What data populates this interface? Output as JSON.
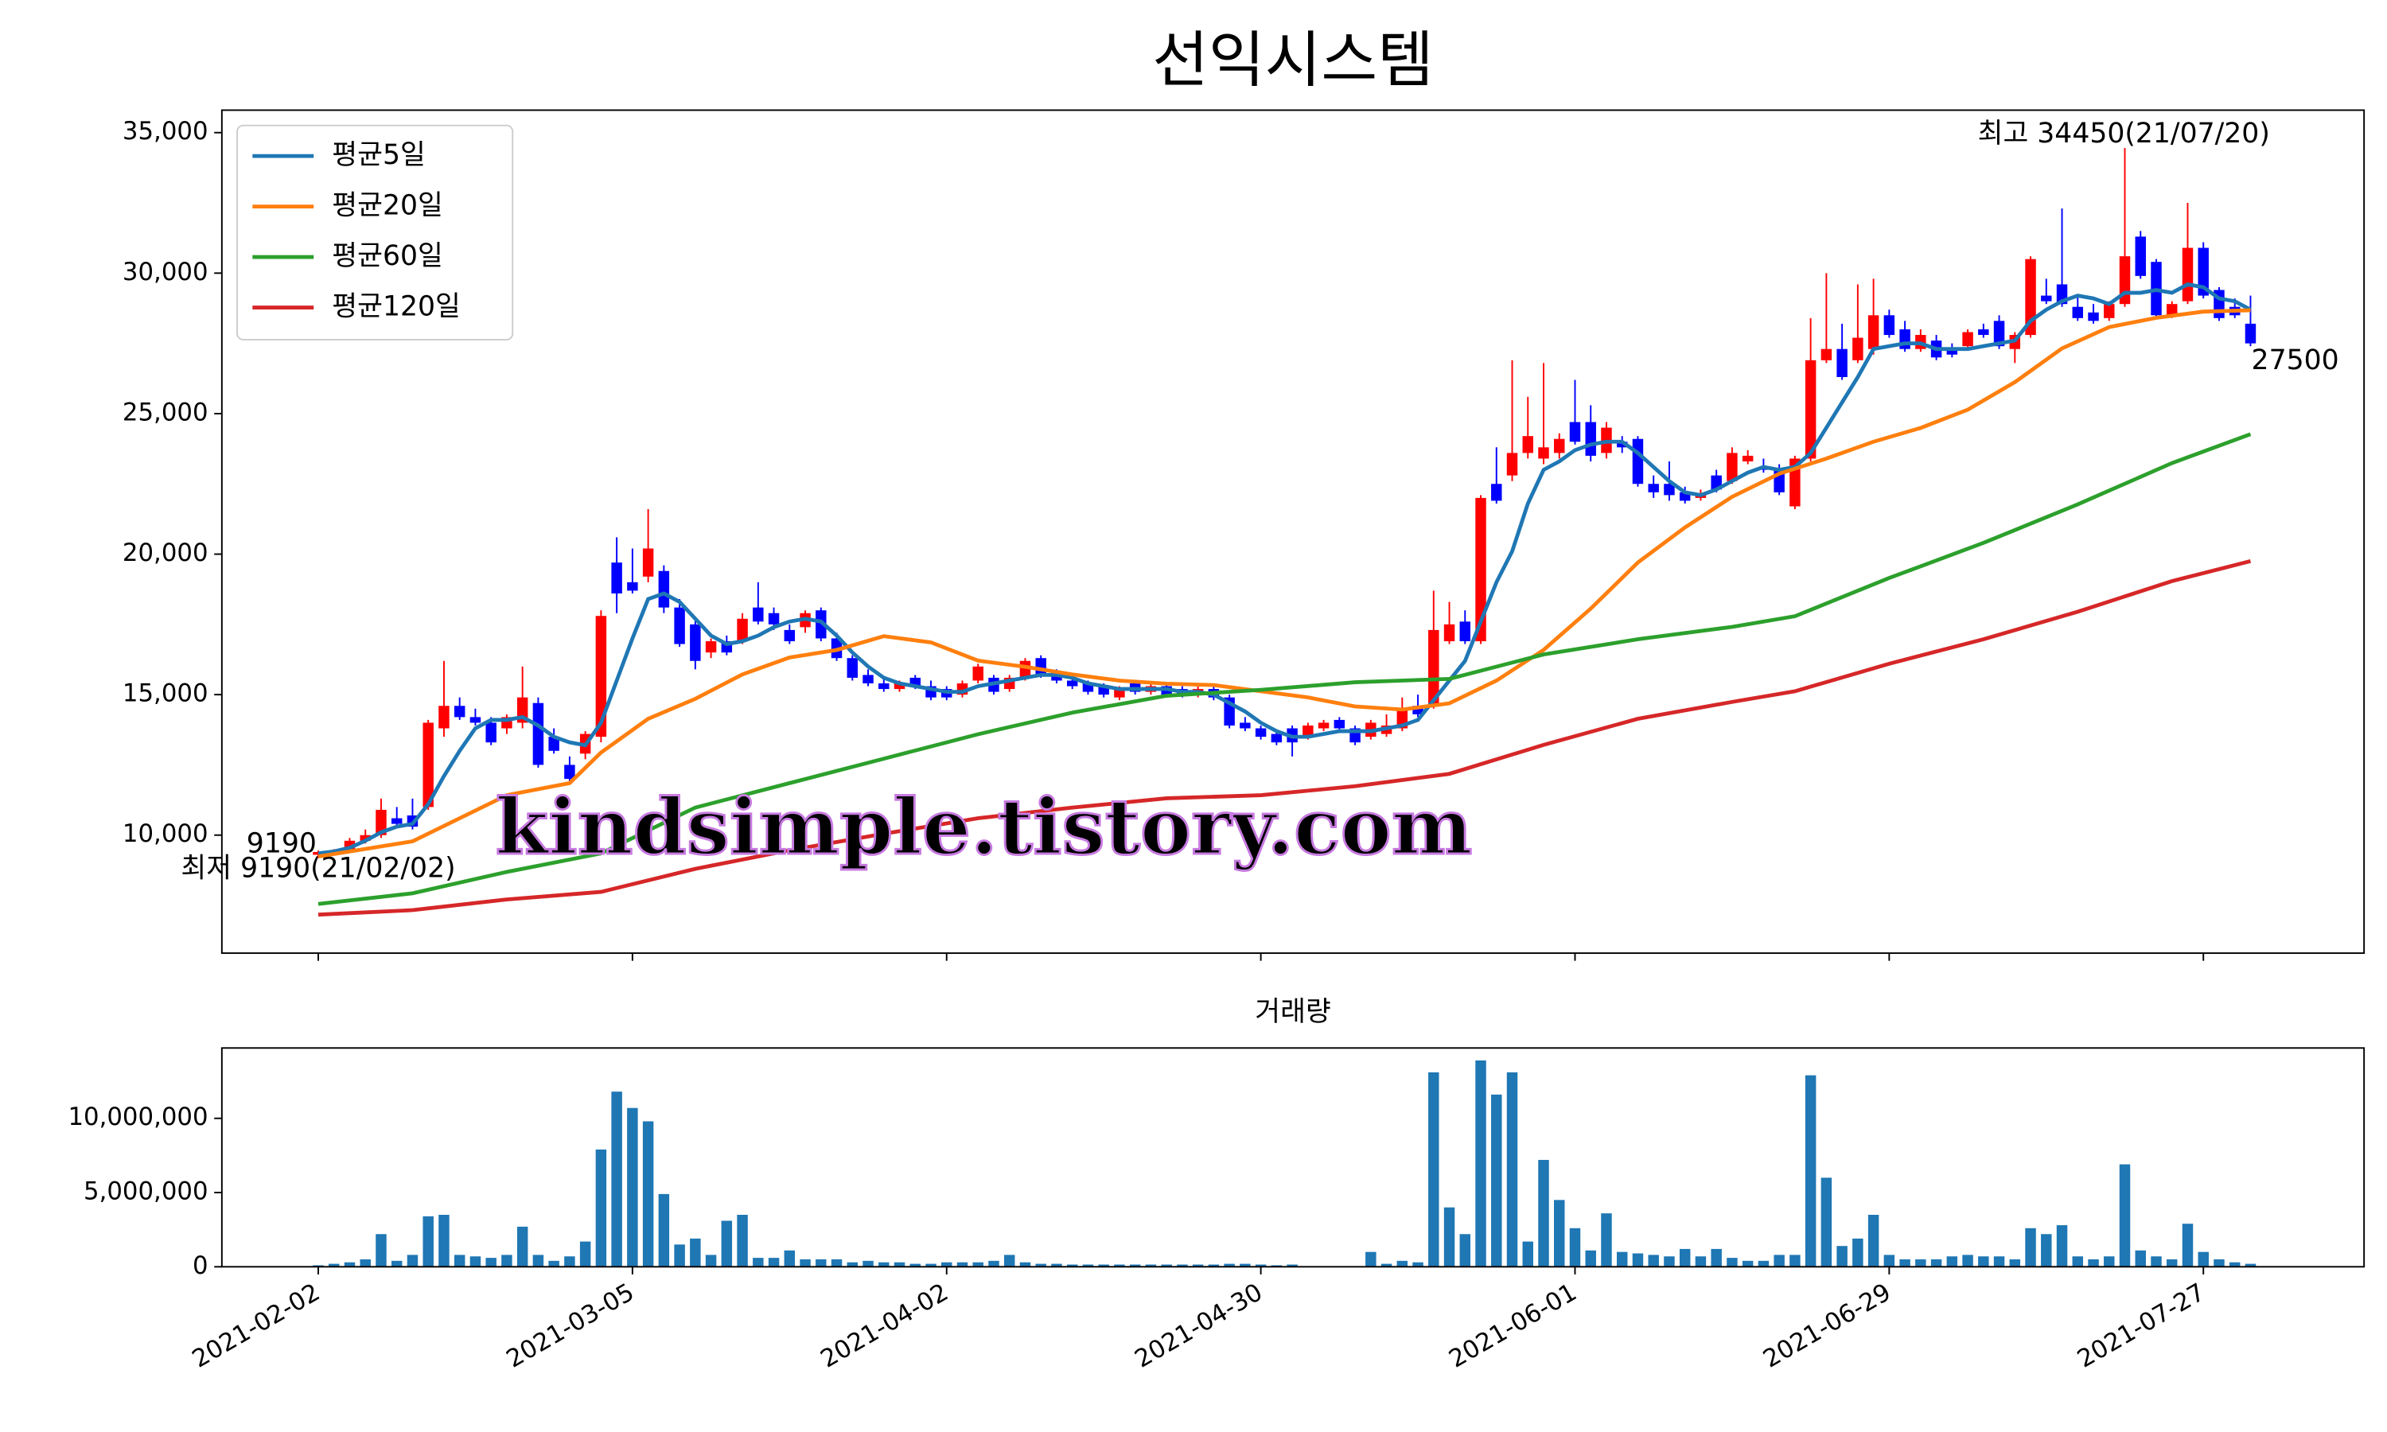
{
  "chart_data": {
    "type": "candlestick",
    "title": "선익시스템",
    "categories": [
      "2021-02-02",
      null,
      null,
      null,
      null,
      null,
      null,
      null,
      null,
      null,
      null,
      null,
      null,
      null,
      null,
      null,
      null,
      null,
      null,
      null,
      "2021-03-05",
      null,
      null,
      null,
      null,
      null,
      null,
      null,
      null,
      null,
      null,
      null,
      null,
      null,
      null,
      null,
      null,
      null,
      null,
      null,
      "2021-04-02",
      null,
      null,
      null,
      null,
      null,
      null,
      null,
      null,
      null,
      null,
      null,
      null,
      null,
      null,
      null,
      null,
      null,
      null,
      null,
      "2021-04-30",
      null,
      null,
      null,
      null,
      null,
      null,
      null,
      null,
      null,
      null,
      null,
      null,
      null,
      null,
      null,
      null,
      null,
      null,
      null,
      "2021-06-01",
      null,
      null,
      null,
      null,
      null,
      null,
      null,
      null,
      null,
      null,
      null,
      null,
      null,
      null,
      null,
      null,
      null,
      null,
      null,
      "2021-06-29",
      null,
      null,
      null,
      null,
      null,
      null,
      null,
      null,
      null,
      null,
      null,
      null,
      null,
      null,
      null,
      null,
      null,
      null,
      null,
      "2021-07-27",
      null,
      null,
      null
    ],
    "open": [
      9300,
      9400,
      9500,
      9800,
      10000,
      10600,
      10700,
      11000,
      13800,
      14600,
      14200,
      14000,
      13800,
      14000,
      14700,
      13500,
      12500,
      12900,
      13500,
      19700,
      19000,
      19200,
      19400,
      18100,
      17500,
      16500,
      16900,
      16900,
      18100,
      17900,
      17300,
      17400,
      18000,
      17000,
      16300,
      15700,
      15400,
      15200,
      15600,
      15300,
      15200,
      15000,
      15500,
      15600,
      15200,
      15600,
      16300,
      15800,
      15500,
      15400,
      15300,
      14900,
      15400,
      15100,
      15300,
      15200,
      15000,
      15200,
      14900,
      14000,
      13800,
      13600,
      13800,
      13500,
      13800,
      14100,
      13800,
      13500,
      13600,
      13800,
      14600,
      14600,
      16900,
      17600,
      16900,
      22500,
      22800,
      23600,
      23400,
      23600,
      24700,
      24700,
      23600,
      24000,
      24100,
      22500,
      22500,
      22200,
      22000,
      22800,
      22600,
      23300,
      23100,
      23000,
      21700,
      23400,
      26900,
      27300,
      26900,
      27300,
      28500,
      28000,
      27300,
      27600,
      27300,
      27400,
      28000,
      28300,
      27300,
      27800,
      29200,
      29600,
      28800,
      28600,
      28400,
      28900,
      31300,
      30400,
      28500,
      29000,
      30900,
      29400,
      28800,
      28200
    ],
    "high": [
      9450,
      9500,
      9900,
      10200,
      11300,
      11000,
      11300,
      14100,
      16200,
      14900,
      14500,
      14200,
      14300,
      16000,
      14900,
      13800,
      12800,
      13700,
      18000,
      20600,
      20200,
      21600,
      19600,
      18400,
      17700,
      17000,
      17100,
      17900,
      19000,
      18100,
      17500,
      18000,
      18100,
      17200,
      16400,
      15900,
      15600,
      15500,
      15700,
      15500,
      15300,
      15500,
      16100,
      15700,
      15700,
      16300,
      16400,
      15900,
      15600,
      15500,
      15400,
      15300,
      15500,
      15400,
      15400,
      15300,
      15300,
      15300,
      15000,
      14200,
      13900,
      13700,
      13900,
      14000,
      14100,
      14200,
      13900,
      14100,
      14300,
      14900,
      15000,
      18700,
      18300,
      18000,
      22100,
      23800,
      26900,
      25600,
      26800,
      24300,
      26200,
      25300,
      24700,
      24200,
      24200,
      22800,
      23300,
      22400,
      22300,
      23000,
      23800,
      23700,
      23400,
      23200,
      23500,
      28400,
      30000,
      28200,
      29600,
      29800,
      28700,
      28300,
      28000,
      27800,
      27500,
      28000,
      28200,
      28500,
      27900,
      30600,
      29800,
      32300,
      29200,
      28900,
      29000,
      34450,
      31500,
      30500,
      29000,
      32500,
      31100,
      29500,
      29100,
      29200
    ],
    "low": [
      9190,
      9350,
      9450,
      9700,
      9900,
      10300,
      10200,
      10900,
      13500,
      14100,
      13900,
      13200,
      13600,
      13800,
      12400,
      12900,
      11800,
      12700,
      13300,
      17900,
      18600,
      19000,
      17900,
      16700,
      15900,
      16300,
      16400,
      16800,
      17500,
      17300,
      16800,
      17200,
      16900,
      16200,
      15500,
      15300,
      15100,
      15100,
      15200,
      14800,
      14800,
      14900,
      15400,
      15000,
      15100,
      15500,
      15600,
      15400,
      15200,
      15000,
      14900,
      14800,
      15000,
      15000,
      14900,
      14900,
      14900,
      14800,
      13800,
      13700,
      13400,
      13200,
      12800,
      13400,
      13700,
      13700,
      13200,
      13400,
      13500,
      13700,
      14200,
      14500,
      16800,
      16800,
      16800,
      21800,
      22600,
      23400,
      23200,
      23400,
      23900,
      23300,
      23400,
      23600,
      22400,
      22000,
      21900,
      21800,
      21900,
      22200,
      22500,
      23200,
      22900,
      22100,
      21600,
      23300,
      26800,
      26200,
      26800,
      27100,
      27700,
      27200,
      27200,
      26900,
      27000,
      27300,
      27700,
      27300,
      26800,
      27700,
      28900,
      28800,
      28300,
      28200,
      28300,
      28800,
      29800,
      28400,
      28400,
      28900,
      29100,
      28300,
      28400,
      27400
    ],
    "close": [
      9400,
      9450,
      9800,
      10000,
      10900,
      10400,
      10300,
      14000,
      14600,
      14200,
      14000,
      13300,
      14200,
      14900,
      12500,
      13000,
      12000,
      13600,
      17800,
      18600,
      18700,
      20200,
      18100,
      16800,
      16200,
      16900,
      16500,
      17700,
      17600,
      17500,
      16900,
      17900,
      17000,
      16300,
      15600,
      15400,
      15200,
      15400,
      15300,
      14900,
      14900,
      15400,
      16000,
      15100,
      15600,
      16200,
      15700,
      15500,
      15300,
      15100,
      15000,
      15200,
      15100,
      15300,
      15000,
      15000,
      15200,
      14900,
      13900,
      13800,
      13500,
      13300,
      13300,
      13900,
      14000,
      13800,
      13300,
      14000,
      13900,
      14500,
      14300,
      17300,
      17500,
      16900,
      22000,
      21900,
      23600,
      24200,
      23800,
      24100,
      24000,
      23500,
      24500,
      23800,
      22500,
      22200,
      22100,
      21900,
      22100,
      22300,
      23600,
      23500,
      23000,
      22200,
      23400,
      26900,
      27300,
      26300,
      27700,
      28500,
      27800,
      27300,
      27800,
      27000,
      27100,
      27900,
      27800,
      27400,
      27800,
      30500,
      29000,
      28900,
      28400,
      28300,
      28900,
      30600,
      29900,
      28500,
      28900,
      30900,
      29200,
      28400,
      28500,
      27500
    ],
    "up_color": "#ff0000",
    "down_color": "#0000ff",
    "series": [
      {
        "name": "평균5일",
        "color": "#1f77b4",
        "values": [
          9350,
          9420,
          9550,
          9800,
          10100,
          10300,
          10400,
          11100,
          12100,
          13000,
          13800,
          14100,
          14100,
          14200,
          13900,
          13500,
          13300,
          13200,
          14000,
          15500,
          17000,
          18400,
          18600,
          18300,
          17700,
          17100,
          16800,
          16900,
          17100,
          17400,
          17600,
          17700,
          17600,
          17100,
          16500,
          16000,
          15600,
          15400,
          15300,
          15200,
          15100,
          15100,
          15300,
          15400,
          15500,
          15600,
          15700,
          15700,
          15600,
          15400,
          15300,
          15200,
          15200,
          15200,
          15200,
          15100,
          15100,
          15000,
          14700,
          14400,
          14000,
          13700,
          13500,
          13500,
          13600,
          13700,
          13700,
          13700,
          13800,
          13900,
          14100,
          14800,
          15500,
          16200,
          17600,
          19000,
          20100,
          21800,
          23000,
          23300,
          23700,
          23900,
          24000,
          24000,
          23600,
          23100,
          22600,
          22200,
          22100,
          22300,
          22600,
          22900,
          23100,
          23000,
          23100,
          23600,
          24500,
          25400,
          26300,
          27300,
          27400,
          27500,
          27500,
          27300,
          27300,
          27300,
          27400,
          27500,
          27600,
          28300,
          28700,
          29000,
          29200,
          29100,
          28900,
          29300,
          29300,
          29400,
          29300,
          29600,
          29500,
          29100,
          29000,
          28700
        ]
      },
      {
        "name": "평균20일",
        "color": "#ff7f0e",
        "x": [
          0,
          6,
          12,
          16,
          18,
          21,
          24,
          27,
          30,
          33,
          36,
          39,
          42,
          45,
          48,
          51,
          54,
          57,
          60,
          63,
          66,
          69,
          72,
          75,
          78,
          81,
          84,
          87,
          90,
          93,
          96,
          99,
          102,
          105,
          108,
          111,
          114,
          117,
          120,
          123
        ],
        "values": [
          9240,
          9780,
          11420,
          11850,
          12940,
          14140,
          14850,
          15720,
          16320,
          16590,
          17080,
          16860,
          16210,
          15990,
          15720,
          15500,
          15390,
          15340,
          15120,
          14900,
          14580,
          14470,
          14690,
          15500,
          16590,
          18060,
          19700,
          20950,
          22040,
          22860,
          23400,
          24000,
          24490,
          25140,
          26120,
          27320,
          28080,
          28410,
          28630,
          28680
        ]
      },
      {
        "name": "평균60일",
        "color": "#2ca02c",
        "x": [
          0,
          6,
          12,
          18,
          24,
          30,
          36,
          42,
          48,
          54,
          60,
          66,
          72,
          78,
          84,
          90,
          94,
          100,
          106,
          112,
          118,
          123
        ],
        "values": [
          7550,
          7930,
          8690,
          9350,
          10980,
          11850,
          12720,
          13590,
          14360,
          14960,
          15170,
          15440,
          15560,
          16430,
          16970,
          17410,
          17790,
          19150,
          20400,
          21770,
          23240,
          24270
        ]
      },
      {
        "name": "평균120일",
        "color": "#d62728",
        "x": [
          0,
          6,
          12,
          18,
          24,
          30,
          36,
          42,
          48,
          54,
          60,
          66,
          72,
          78,
          84,
          90,
          94,
          100,
          106,
          112,
          118,
          123
        ],
        "values": [
          7170,
          7330,
          7710,
          7980,
          8800,
          9460,
          10050,
          10600,
          10980,
          11310,
          11420,
          11740,
          12180,
          13210,
          14140,
          14740,
          15120,
          16100,
          16970,
          17950,
          19040,
          19750
        ]
      }
    ],
    "ylim": [
      5800,
      35800
    ],
    "yticks": [
      {
        "value": 10000,
        "label": "10,000"
      },
      {
        "value": 15000,
        "label": "15,000"
      },
      {
        "value": 20000,
        "label": "20,000"
      },
      {
        "value": 25000,
        "label": "25,000"
      },
      {
        "value": 30000,
        "label": "30,000"
      },
      {
        "value": 35000,
        "label": "35,000"
      }
    ],
    "legend": "upper left",
    "annotations": [
      {
        "text": "최고 34450(21/07/20)",
        "color": "#ff0000"
      },
      {
        "text": "최저 9190(21/02/02)",
        "color": "#0000ff"
      }
    ],
    "watermark": "kindsimple.tistory.com",
    "volume": {
      "type": "bar",
      "title": "거래량",
      "color": "#1f77b4",
      "values": [
        100000,
        200000,
        300000,
        500000,
        2200000,
        400000,
        800000,
        3400000,
        3500000,
        800000,
        700000,
        600000,
        800000,
        2700000,
        800000,
        400000,
        700000,
        1700000,
        7900000,
        11800000,
        10700000,
        9800000,
        4900000,
        1500000,
        1900000,
        800000,
        3100000,
        3500000,
        600000,
        600000,
        1100000,
        500000,
        500000,
        500000,
        300000,
        400000,
        300000,
        300000,
        200000,
        200000,
        300000,
        300000,
        300000,
        400000,
        800000,
        300000,
        200000,
        200000,
        150000,
        150000,
        150000,
        150000,
        150000,
        150000,
        150000,
        150000,
        150000,
        150000,
        200000,
        200000,
        150000,
        100000,
        150000,
        20000,
        20000,
        20000,
        20000,
        1000000,
        200000,
        400000,
        300000,
        13100000,
        4000000,
        2200000,
        13900000,
        11600000,
        13100000,
        1700000,
        7200000,
        4500000,
        2600000,
        1100000,
        3600000,
        1000000,
        900000,
        800000,
        700000,
        1200000,
        700000,
        1200000,
        600000,
        400000,
        400000,
        800000,
        800000,
        12900000,
        6000000,
        1400000,
        1900000,
        3500000,
        800000,
        500000,
        500000,
        500000,
        700000,
        800000,
        700000,
        700000,
        500000,
        2600000,
        2200000,
        2800000,
        700000,
        500000,
        700000,
        6900000,
        1100000,
        700000,
        500000,
        2900000,
        1000000,
        500000,
        300000,
        200000
      ],
      "ylim": [
        0,
        14740000
      ],
      "yticks": [
        0,
        {
          "value": 5000000,
          "label": "5,000,000"
        },
        {
          "value": 10000000,
          "label": "10,000,000"
        }
      ]
    }
  }
}
